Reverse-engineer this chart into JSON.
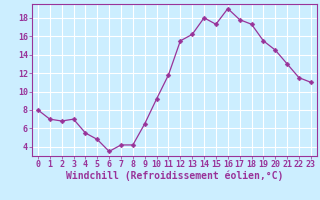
{
  "x": [
    0,
    1,
    2,
    3,
    4,
    5,
    6,
    7,
    8,
    9,
    10,
    11,
    12,
    13,
    14,
    15,
    16,
    17,
    18,
    19,
    20,
    21,
    22,
    23
  ],
  "y": [
    8.0,
    7.0,
    6.8,
    7.0,
    5.5,
    4.8,
    3.5,
    4.2,
    4.2,
    6.5,
    9.2,
    11.8,
    15.5,
    16.2,
    18.0,
    17.3,
    19.0,
    17.8,
    17.3,
    15.5,
    14.5,
    13.0,
    11.5,
    11.0
  ],
  "line_color": "#993399",
  "marker": "D",
  "marker_size": 2.5,
  "bg_color": "#cceeff",
  "grid_color": "#ffffff",
  "xlabel": "Windchill (Refroidissement éolien,°C)",
  "ylabel_ticks": [
    4,
    6,
    8,
    10,
    12,
    14,
    16,
    18
  ],
  "xtick_labels": [
    "0",
    "1",
    "2",
    "3",
    "4",
    "5",
    "6",
    "7",
    "8",
    "9",
    "10",
    "11",
    "12",
    "13",
    "14",
    "15",
    "16",
    "17",
    "18",
    "19",
    "20",
    "21",
    "22",
    "23"
  ],
  "ylim": [
    3.0,
    19.5
  ],
  "xlim": [
    -0.5,
    23.5
  ],
  "axis_color": "#993399",
  "label_fontsize": 7,
  "tick_fontsize": 6
}
